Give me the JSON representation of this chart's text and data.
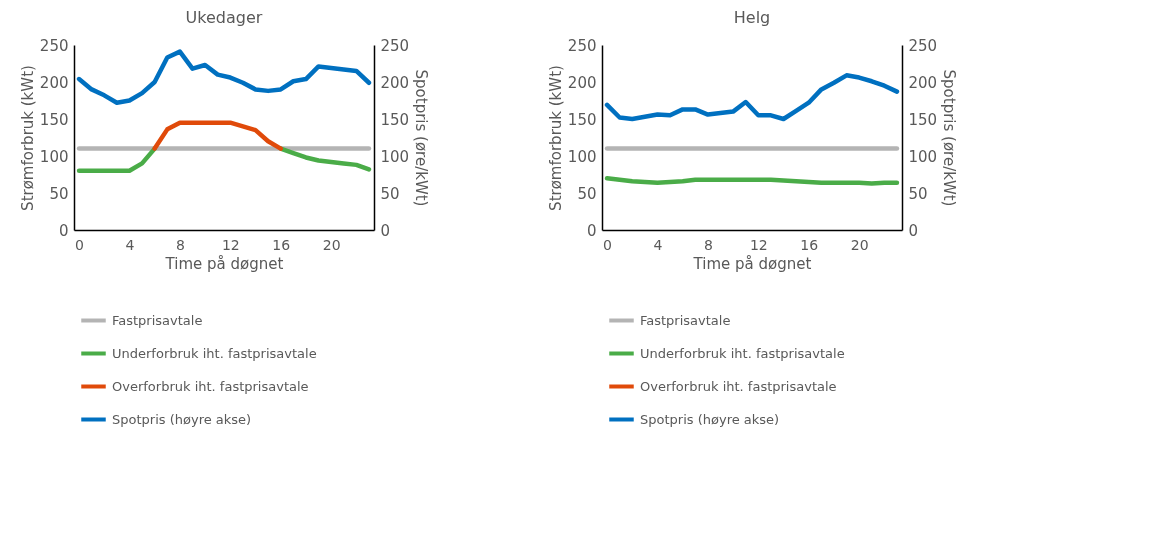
{
  "chart_data": [
    {
      "type": "line",
      "title": "Ukedager",
      "xlabel": "Time på døgnet",
      "ylabel": "Strømforbruk (kWt)",
      "y2label": "Spotpris (øre/kWt)",
      "x": [
        0,
        1,
        2,
        3,
        4,
        5,
        6,
        7,
        8,
        9,
        10,
        11,
        12,
        13,
        14,
        15,
        16,
        17,
        18,
        19,
        20,
        21,
        22,
        23
      ],
      "series": [
        {
          "name": "Fastprisavtale",
          "color": "#b4b4b4",
          "values": [
            110,
            110,
            110,
            110,
            110,
            110,
            110,
            110,
            110,
            110,
            110,
            110,
            110,
            110,
            110,
            110,
            110,
            110,
            110,
            110,
            110,
            110,
            110,
            110
          ]
        },
        {
          "name": "Underforbruk iht. fastprisavtale",
          "color": "#4aac48",
          "values": [
            80,
            80,
            80,
            80,
            80,
            90,
            110,
            null,
            null,
            null,
            null,
            null,
            null,
            null,
            null,
            null,
            110,
            104,
            98,
            94,
            92,
            90,
            88,
            82
          ]
        },
        {
          "name": "Overforbruk iht. fastprisavtale",
          "color": "#e04a0a",
          "values": [
            null,
            null,
            null,
            null,
            null,
            null,
            110,
            136,
            145,
            145,
            145,
            145,
            145,
            140,
            135,
            120,
            110,
            null,
            null,
            null,
            null,
            null,
            null,
            null
          ]
        },
        {
          "name": "Spotpris (høyre akse)",
          "color": "#0070c0",
          "axis": "y2",
          "values": [
            204,
            190,
            182,
            172,
            175,
            185,
            200,
            233,
            241,
            218,
            223,
            210,
            206,
            199,
            190,
            188,
            190,
            201,
            204,
            221,
            219,
            217,
            215,
            199
          ]
        }
      ],
      "xlim": [
        -0.4,
        23.4
      ],
      "xticks": [
        0,
        4,
        8,
        12,
        16,
        20
      ],
      "ylim": [
        0,
        250
      ],
      "yticks": [
        0,
        50,
        100,
        150,
        200,
        250
      ],
      "y2lim": [
        0,
        250
      ],
      "y2ticks": [
        0,
        50,
        100,
        150,
        200,
        250
      ],
      "legend": "bottom",
      "grid": false,
      "marker": "none",
      "line_style": "solid"
    },
    {
      "type": "line",
      "title": "Helg",
      "xlabel": "Time på døgnet",
      "ylabel": "Strømforbruk (kWt)",
      "y2label": "Spotpris (øre/kWt)",
      "x": [
        0,
        1,
        2,
        3,
        4,
        5,
        6,
        7,
        8,
        9,
        10,
        11,
        12,
        13,
        14,
        15,
        16,
        17,
        18,
        19,
        20,
        21,
        22,
        23
      ],
      "series": [
        {
          "name": "Fastprisavtale",
          "color": "#b4b4b4",
          "values": [
            110,
            110,
            110,
            110,
            110,
            110,
            110,
            110,
            110,
            110,
            110,
            110,
            110,
            110,
            110,
            110,
            110,
            110,
            110,
            110,
            110,
            110,
            110,
            110
          ]
        },
        {
          "name": "Underforbruk iht. fastprisavtale",
          "color": "#4aac48",
          "values": [
            70,
            68,
            66,
            65,
            64,
            65,
            66,
            68,
            68,
            68,
            68,
            68,
            68,
            68,
            67,
            66,
            65,
            64,
            64,
            64,
            64,
            63,
            64,
            64
          ]
        },
        {
          "name": "Overforbruk iht. fastprisavtale",
          "color": "#e04a0a",
          "values": [
            null,
            null,
            null,
            null,
            null,
            null,
            null,
            null,
            null,
            null,
            null,
            null,
            null,
            null,
            null,
            null,
            null,
            null,
            null,
            null,
            null,
            null,
            null,
            null
          ]
        },
        {
          "name": "Spotpris (høyre akse)",
          "color": "#0070c0",
          "axis": "y2",
          "values": [
            169,
            152,
            150,
            153,
            156,
            155,
            163,
            163,
            156,
            158,
            160,
            173,
            155,
            155,
            150,
            161,
            172,
            190,
            199,
            209,
            206,
            201,
            195,
            187
          ]
        }
      ],
      "xlim": [
        -0.4,
        23.4
      ],
      "xticks": [
        0,
        4,
        8,
        12,
        16,
        20
      ],
      "ylim": [
        0,
        250
      ],
      "yticks": [
        0,
        50,
        100,
        150,
        200,
        250
      ],
      "y2lim": [
        0,
        250
      ],
      "y2ticks": [
        0,
        50,
        100,
        150,
        200,
        250
      ],
      "legend": "bottom",
      "grid": false,
      "marker": "none",
      "line_style": "solid"
    }
  ]
}
